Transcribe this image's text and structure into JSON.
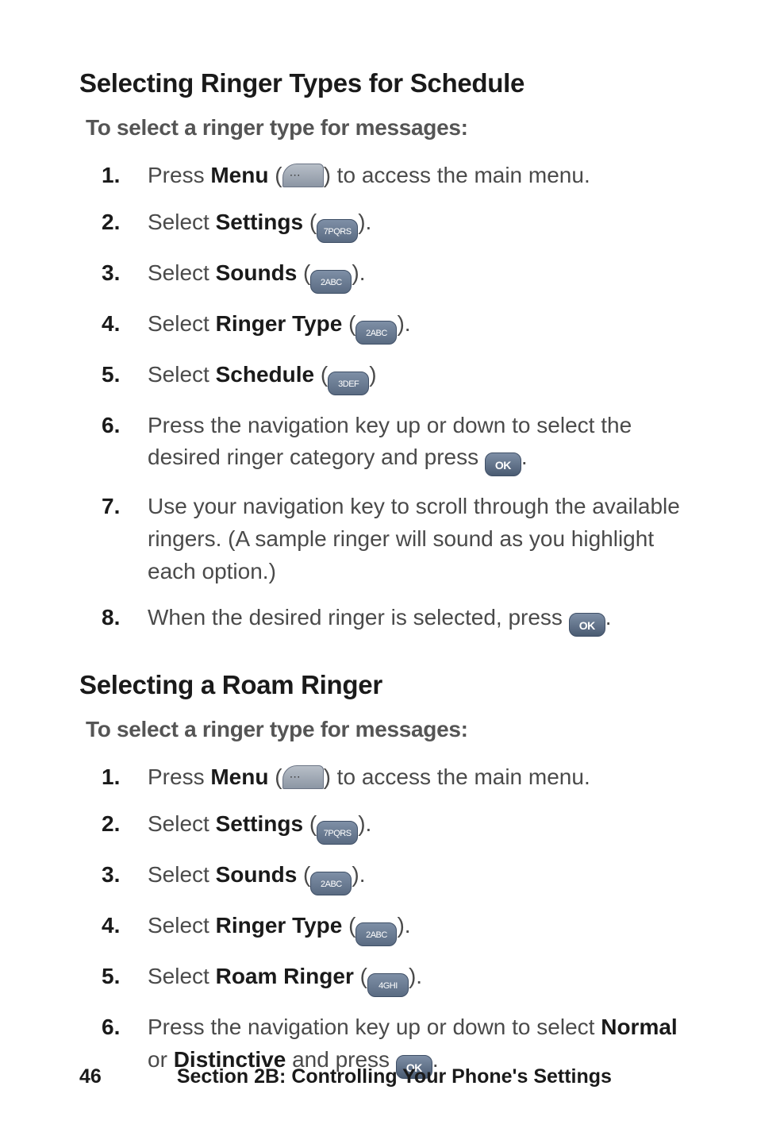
{
  "section1": {
    "heading": "Selecting Ringer Types for Schedule",
    "subheading": "To select a ringer type for messages:",
    "steps": [
      {
        "pre": "Press ",
        "bold": "Menu",
        "post1": " (",
        "icon": "menu",
        "iconlabel": "",
        "post2": ") to access the main menu."
      },
      {
        "pre": "Select ",
        "bold": "Settings",
        "post1": " (",
        "icon": "num",
        "iconlabel": "7PQRS",
        "post2": ")."
      },
      {
        "pre": "Select ",
        "bold": "Sounds",
        "post1": " (",
        "icon": "num",
        "iconlabel": "2ABC",
        "post2": ")."
      },
      {
        "pre": "Select ",
        "bold": "Ringer Type",
        "post1": " (",
        "icon": "num",
        "iconlabel": "2ABC",
        "post2": ")."
      },
      {
        "pre": "Select ",
        "bold": "Schedule",
        "post1": " (",
        "icon": "num",
        "iconlabel": "3DEF",
        "post2": ")"
      },
      {
        "pre": "Press the navigation key up or down to select the desired ringer category and press ",
        "bold": "",
        "post1": "",
        "icon": "ok",
        "iconlabel": "OK",
        "post2": "."
      },
      {
        "pre": "Use your navigation key to scroll through the available ringers. (A sample ringer will sound as you highlight each option.)",
        "bold": "",
        "post1": "",
        "icon": "",
        "iconlabel": "",
        "post2": ""
      },
      {
        "pre": "When the desired ringer is selected, press ",
        "bold": "",
        "post1": "",
        "icon": "ok",
        "iconlabel": "OK",
        "post2": "."
      }
    ]
  },
  "section2": {
    "heading": "Selecting a Roam Ringer",
    "subheading": "To select a ringer type for messages:",
    "steps": [
      {
        "pre": "Press ",
        "bold": "Menu",
        "post1": " (",
        "icon": "menu",
        "iconlabel": "",
        "post2": ") to access the main menu."
      },
      {
        "pre": "Select ",
        "bold": "Settings",
        "post1": " (",
        "icon": "num",
        "iconlabel": "7PQRS",
        "post2": ")."
      },
      {
        "pre": "Select ",
        "bold": "Sounds",
        "post1": " (",
        "icon": "num",
        "iconlabel": "2ABC",
        "post2": ")."
      },
      {
        "pre": "Select ",
        "bold": "Ringer Type",
        "post1": " (",
        "icon": "num",
        "iconlabel": "2ABC",
        "post2": ")."
      },
      {
        "pre": "Select ",
        "bold": "Roam Ringer",
        "post1": " (",
        "icon": "num",
        "iconlabel": "4GHI",
        "post2": ")."
      }
    ],
    "step6": {
      "pre": "Press the navigation key up or down to select ",
      "bold1": "Normal",
      "mid": " or ",
      "bold2": "Distinctive",
      "post1": " and press ",
      "iconlabel": "OK",
      "post2": "."
    }
  },
  "footer": {
    "page": "46",
    "section": "Section 2B: Controlling Your Phone's Settings"
  }
}
